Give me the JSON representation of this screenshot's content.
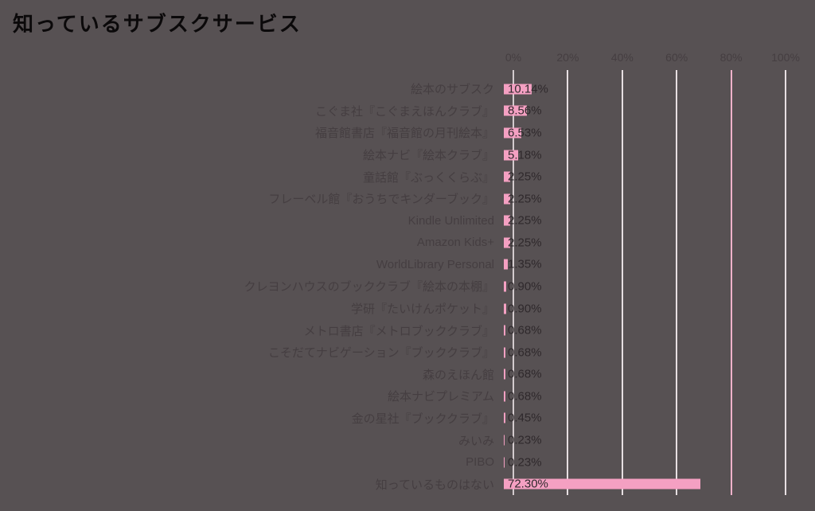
{
  "title": "知っているサブスクサービス",
  "colors": {
    "background": "#575153",
    "bar": "#f4a0c2",
    "gridline": "#e7dfe2",
    "gridline_highlight": "#eeb2ca",
    "text": "#453e41",
    "value_text": "#2f292c",
    "title_text": "#0b090a"
  },
  "chart_data": {
    "type": "bar",
    "orientation": "horizontal",
    "title": "知っているサブスクサービス",
    "categories": [
      "絵本のサブスク",
      "こぐま社『こぐまえほんクラブ』",
      "福音館書店『福音館の月刊絵本』",
      "絵本ナビ『絵本クラブ』",
      "童話館『ぶっくくらぶ』",
      "フレーベル館『おうちでキンダーブック』",
      "Kindle Unlimited",
      "Amazon Kids+",
      "WorldLibrary Personal",
      "クレヨンハウスのブッククラブ『絵本の本棚』",
      "学研『たいけんポケット』",
      "メトロ書店『メトロブッククラブ』",
      "こそだてナビゲーション『ブッククラブ』",
      "森のえほん館",
      "絵本ナビプレミアム",
      "金の星社『ブッククラブ』",
      "みいみ",
      "PIBO",
      "知っているものはない"
    ],
    "values": [
      10.14,
      8.56,
      6.53,
      5.18,
      2.25,
      2.25,
      2.25,
      2.25,
      1.35,
      0.9,
      0.9,
      0.68,
      0.68,
      0.68,
      0.68,
      0.45,
      0.23,
      0.23,
      72.3
    ],
    "value_labels": [
      "10.14%",
      "8.56%",
      "6.53%",
      "5.18%",
      "2.25%",
      "2.25%",
      "2.25%",
      "2.25%",
      "1.35%",
      "0.90%",
      "0.90%",
      "0.68%",
      "0.68%",
      "0.68%",
      "0.68%",
      "0.45%",
      "0.23%",
      "0.23%",
      "72.30%"
    ],
    "x_ticks": [
      "0%",
      "20%",
      "40%",
      "60%",
      "80%",
      "100%"
    ],
    "xlim": [
      0,
      100
    ],
    "grid": "vertical-major",
    "legend": "none",
    "value_label_position": "inside-base"
  }
}
